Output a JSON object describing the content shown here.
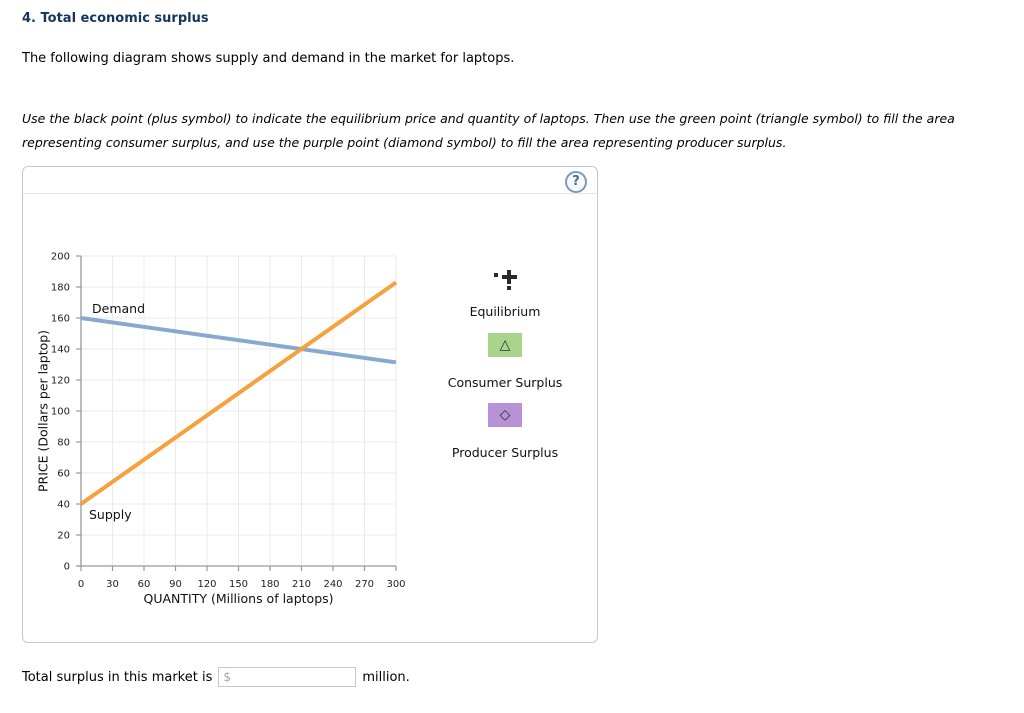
{
  "page": {
    "title": "4. Total economic surplus",
    "intro": "The following diagram shows supply and demand in the market for laptops.",
    "instructions_line1": "Use the black point (plus symbol) to indicate the equilibrium price and quantity of laptops. Then use the green point (triangle symbol) to fill the area",
    "instructions_line2": "representing consumer surplus, and use the purple point (diamond symbol) to fill the area representing producer surplus."
  },
  "panel": {
    "help_label": "?"
  },
  "chart_data": {
    "type": "line",
    "title": "",
    "xlabel": "QUANTITY (Millions of laptops)",
    "ylabel": "PRICE (Dollars per laptop)",
    "xlim": [
      0,
      300
    ],
    "ylim": [
      0,
      200
    ],
    "x_ticks": [
      0,
      30,
      60,
      90,
      120,
      150,
      180,
      210,
      240,
      270,
      300
    ],
    "y_ticks": [
      0,
      20,
      40,
      60,
      80,
      100,
      120,
      140,
      160,
      180,
      200
    ],
    "grid": true,
    "grid_color": "#ebebeb",
    "axis_color": "#999999",
    "series": [
      {
        "name": "Demand",
        "color": "#87a9ce",
        "points": [
          [
            0,
            160
          ],
          [
            300,
            131.4
          ]
        ]
      },
      {
        "name": "Supply",
        "color": "#f6a13b",
        "points": [
          [
            0,
            40
          ],
          [
            300,
            182.9
          ]
        ]
      }
    ],
    "intersection": {
      "quantity": 210,
      "price": 140
    }
  },
  "legend": {
    "items": [
      {
        "label": "Equilibrium",
        "symbol": "plus",
        "color": "#2b2b2b"
      },
      {
        "label": "Consumer Surplus",
        "symbol": "triangle",
        "symbol_char": "△",
        "color": "#a9d48c"
      },
      {
        "label": "Producer Surplus",
        "symbol": "diamond",
        "symbol_char": "◇",
        "color": "#b892d6"
      }
    ]
  },
  "footer": {
    "prefix": "Total surplus in this market is",
    "input_value": "",
    "input_placeholder": "$",
    "suffix": "million."
  }
}
